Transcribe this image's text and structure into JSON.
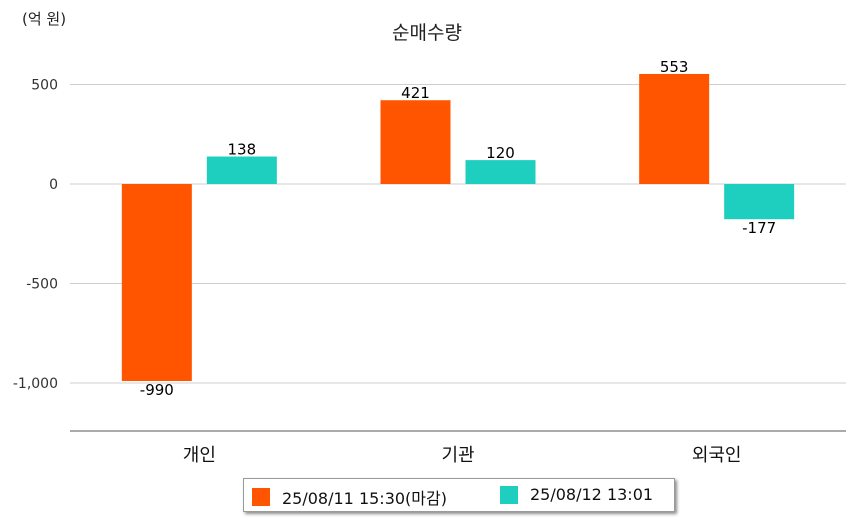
{
  "unit_label": "(억 원)",
  "chart_data": {
    "type": "bar",
    "title": "순매수량",
    "categories": [
      "개인",
      "기관",
      "외국인"
    ],
    "series": [
      {
        "name": "25/08/11 15:30(마감)",
        "color": "#ff5500",
        "values": [
          -990,
          421,
          553
        ]
      },
      {
        "name": "25/08/12 13:01",
        "color": "#1ecebe",
        "values": [
          138,
          120,
          -177
        ]
      }
    ],
    "y_ticks": [
      500,
      0,
      -500,
      -1000
    ],
    "y_tick_labels": [
      "500",
      "0",
      "-500",
      "-1,000"
    ],
    "ylim": [
      -1230,
      620
    ],
    "grid": true,
    "legend_position": "bottom"
  }
}
